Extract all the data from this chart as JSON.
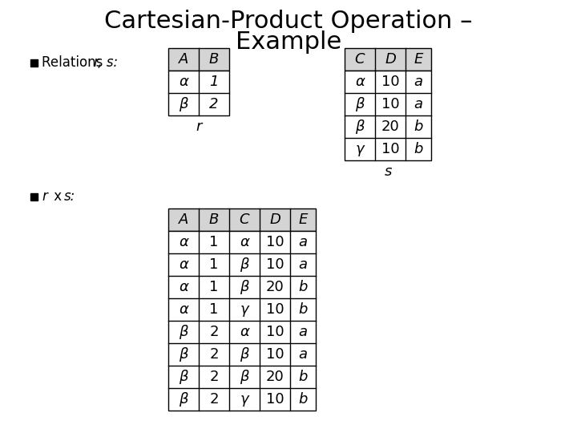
{
  "title_line1": "Cartesian-Product Operation –",
  "title_line2": "Example",
  "bg_color": "#ffffff",
  "header_bg": "#d4d4d4",
  "body_fontsize": 13,
  "title_fontsize": 22,
  "bullet_label1": "Relations r, s:",
  "bullet_label2": "r x s:",
  "r_headers": [
    "A",
    "B"
  ],
  "r_data": [
    [
      "α",
      "1"
    ],
    [
      "β",
      "2"
    ]
  ],
  "r_label": "r",
  "s_headers": [
    "C",
    "D",
    "E"
  ],
  "s_data": [
    [
      "α",
      "10",
      "a"
    ],
    [
      "β",
      "10",
      "a"
    ],
    [
      "β",
      "20",
      "b"
    ],
    [
      "γ",
      "10",
      "b"
    ]
  ],
  "s_label": "s",
  "rxs_headers": [
    "A",
    "B",
    "C",
    "D",
    "E"
  ],
  "rxs_data": [
    [
      "α",
      "1",
      "α",
      "10",
      "a"
    ],
    [
      "α",
      "1",
      "β",
      "10",
      "a"
    ],
    [
      "α",
      "1",
      "β",
      "20",
      "b"
    ],
    [
      "α",
      "1",
      "γ",
      "10",
      "b"
    ],
    [
      "β",
      "2",
      "α",
      "10",
      "a"
    ],
    [
      "β",
      "2",
      "β",
      "10",
      "a"
    ],
    [
      "β",
      "2",
      "β",
      "20",
      "b"
    ],
    [
      "β",
      "2",
      "γ",
      "10",
      "b"
    ]
  ]
}
